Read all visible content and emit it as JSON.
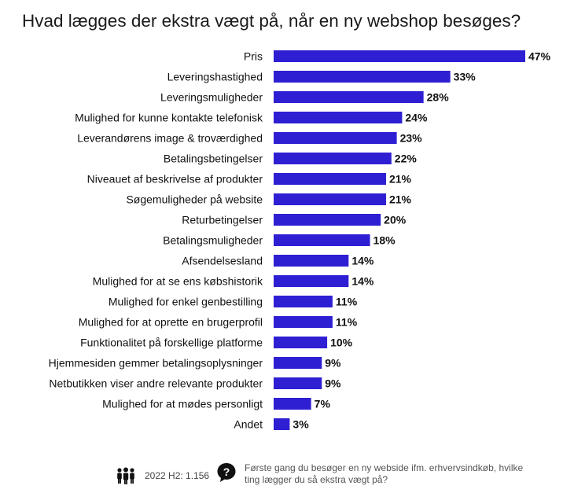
{
  "title": "Hvad lægges der ekstra vægt på, når en ny webshop besøges?",
  "colors": {
    "bar": "#2f1fd3",
    "text": "#111111"
  },
  "chart_data": {
    "type": "bar",
    "orientation": "horizontal",
    "categories": [
      "Pris",
      "Leveringshastighed",
      "Leveringsmuligheder",
      "Mulighed for kunne kontakte telefonisk",
      "Leverandørens image & troværdighed",
      "Betalingsbetingelser",
      "Niveauet af beskrivelse af produkter",
      "Søgemuligheder på website",
      "Returbetingelser",
      "Betalingsmuligheder",
      "Afsendelsesland",
      "Mulighed for at se ens købshistorik",
      "Mulighed for enkel genbestilling",
      "Mulighed for at oprette en brugerprofil",
      "Funktionalitet på forskellige platforme",
      "Hjemmesiden gemmer betalingsoplysninger",
      "Netbutikken viser andre relevante produkter",
      "Mulighed for at mødes personligt",
      "Andet"
    ],
    "values": [
      47,
      33,
      28,
      24,
      23,
      22,
      21,
      21,
      20,
      18,
      14,
      14,
      11,
      11,
      10,
      9,
      9,
      7,
      3
    ],
    "value_labels": [
      "47%",
      "33%",
      "28%",
      "24%",
      "23%",
      "22%",
      "21%",
      "21%",
      "20%",
      "18%",
      "14%",
      "14%",
      "11%",
      "11%",
      "10%",
      "9%",
      "9%",
      "7%",
      "3%"
    ],
    "xlim": [
      0,
      47
    ],
    "grid": false,
    "legend": "none"
  },
  "footer": {
    "sample_label": "2022 H2: 1.156",
    "people_icon": "people-icon",
    "question_icon": "question-icon",
    "question_text": "Første gang du besøger en ny webside ifm. erhvervsindkøb, hvilke ting lægger du så ekstra vægt på?"
  }
}
